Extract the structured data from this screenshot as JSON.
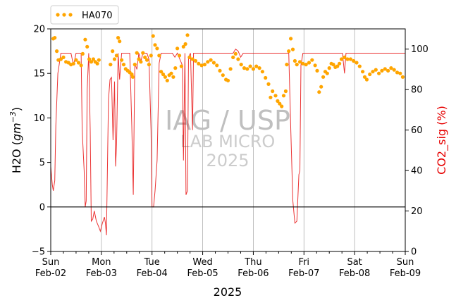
{
  "chart_data": {
    "type": "line",
    "x_axis": {
      "label": "2025",
      "ticks": [
        {
          "day": "Sun",
          "date": "Feb-02",
          "x": 0
        },
        {
          "day": "Mon",
          "date": "Feb-03",
          "x": 1
        },
        {
          "day": "Tue",
          "date": "Feb-04",
          "x": 2
        },
        {
          "day": "Wed",
          "date": "Feb-05",
          "x": 3
        },
        {
          "day": "Thu",
          "date": "Feb-06",
          "x": 4
        },
        {
          "day": "Fri",
          "date": "Feb-07",
          "x": 5
        },
        {
          "day": "Sat",
          "date": "Feb-08",
          "x": 6
        },
        {
          "day": "Sun",
          "date": "Feb-09",
          "x": 7
        }
      ],
      "range_days": [
        0,
        7
      ],
      "grid": true
    },
    "y_left": {
      "label_prefix": "H2O (",
      "label_math": "gm",
      "label_sup": "−3",
      "label_suffix": ")",
      "ylim": [
        -5,
        20
      ],
      "ticks": [
        "−5",
        "0",
        "5",
        "10",
        "15",
        "20"
      ],
      "tick_values": [
        -5,
        0,
        5,
        10,
        15,
        20
      ],
      "zero_line": true
    },
    "y_right": {
      "label": "CO2_sig (%)",
      "color": "#e60000",
      "ylim": [
        0,
        110
      ],
      "ticks": [
        "0",
        "20",
        "40",
        "60",
        "80",
        "100"
      ],
      "tick_values": [
        0,
        20,
        40,
        60,
        80,
        100
      ]
    },
    "series": [
      {
        "name": "HA070",
        "axis": "left",
        "style": "dots",
        "color": "#ffa500",
        "points": [
          [
            0.05,
            18.9
          ],
          [
            0.08,
            19.0
          ],
          [
            0.12,
            17.5
          ],
          [
            0.15,
            16.5
          ],
          [
            0.2,
            16.6
          ],
          [
            0.25,
            16.8
          ],
          [
            0.3,
            16.3
          ],
          [
            0.35,
            16.2
          ],
          [
            0.4,
            16.0
          ],
          [
            0.45,
            16.1
          ],
          [
            0.5,
            16.5
          ],
          [
            0.55,
            16.2
          ],
          [
            0.6,
            15.9
          ],
          [
            0.63,
            17.2
          ],
          [
            0.68,
            18.8
          ],
          [
            0.72,
            18.0
          ],
          [
            0.76,
            16.6
          ],
          [
            0.8,
            16.3
          ],
          [
            0.84,
            16.6
          ],
          [
            0.88,
            16.3
          ],
          [
            0.92,
            16.1
          ],
          [
            0.95,
            16.5
          ],
          [
            1.18,
            16.0
          ],
          [
            1.22,
            17.5
          ],
          [
            1.26,
            16.6
          ],
          [
            1.3,
            17.0
          ],
          [
            1.33,
            19.0
          ],
          [
            1.36,
            18.6
          ],
          [
            1.4,
            16.5
          ],
          [
            1.44,
            16.0
          ],
          [
            1.48,
            15.5
          ],
          [
            1.52,
            15.3
          ],
          [
            1.56,
            15.1
          ],
          [
            1.6,
            14.9
          ],
          [
            1.62,
            14.6
          ],
          [
            1.66,
            16.0
          ],
          [
            1.7,
            17.3
          ],
          [
            1.74,
            16.6
          ],
          [
            1.78,
            16.3
          ],
          [
            1.82,
            17.3
          ],
          [
            1.86,
            16.8
          ],
          [
            1.9,
            16.5
          ],
          [
            1.94,
            16.0
          ],
          [
            1.98,
            17.0
          ],
          [
            2.02,
            19.2
          ],
          [
            2.06,
            18.2
          ],
          [
            2.1,
            17.8
          ],
          [
            2.14,
            17.0
          ],
          [
            2.18,
            15.2
          ],
          [
            2.22,
            14.9
          ],
          [
            2.26,
            14.6
          ],
          [
            2.3,
            14.2
          ],
          [
            2.34,
            14.8
          ],
          [
            2.38,
            15.0
          ],
          [
            2.42,
            14.6
          ],
          [
            2.46,
            15.6
          ],
          [
            2.5,
            17.8
          ],
          [
            2.54,
            17.0
          ],
          [
            2.58,
            15.8
          ],
          [
            2.62,
            18.0
          ],
          [
            2.66,
            18.3
          ],
          [
            2.7,
            19.3
          ],
          [
            2.74,
            16.8
          ],
          [
            2.8,
            16.6
          ],
          [
            2.86,
            16.4
          ],
          [
            2.92,
            16.1
          ],
          [
            2.98,
            15.9
          ],
          [
            3.04,
            16.0
          ],
          [
            3.1,
            16.3
          ],
          [
            3.16,
            16.5
          ],
          [
            3.22,
            16.2
          ],
          [
            3.28,
            15.9
          ],
          [
            3.34,
            15.3
          ],
          [
            3.4,
            14.8
          ],
          [
            3.46,
            14.3
          ],
          [
            3.5,
            14.2
          ],
          [
            3.55,
            15.5
          ],
          [
            3.6,
            16.8
          ],
          [
            3.65,
            17.2
          ],
          [
            3.7,
            16.6
          ],
          [
            3.76,
            16.0
          ],
          [
            3.82,
            15.6
          ],
          [
            3.88,
            15.5
          ],
          [
            3.94,
            15.8
          ],
          [
            4.0,
            15.5
          ],
          [
            4.06,
            15.8
          ],
          [
            4.12,
            15.6
          ],
          [
            4.18,
            15.2
          ],
          [
            4.24,
            14.5
          ],
          [
            4.3,
            13.8
          ],
          [
            4.34,
            12.3
          ],
          [
            4.38,
            13.0
          ],
          [
            4.44,
            12.5
          ],
          [
            4.48,
            11.9
          ],
          [
            4.52,
            11.6
          ],
          [
            4.56,
            11.3
          ],
          [
            4.6,
            12.5
          ],
          [
            4.64,
            13.0
          ],
          [
            4.66,
            16.0
          ],
          [
            4.7,
            17.5
          ],
          [
            4.74,
            18.9
          ],
          [
            4.78,
            17.7
          ],
          [
            4.82,
            16.4
          ],
          [
            4.86,
            16.0
          ],
          [
            4.92,
            16.3
          ],
          [
            4.98,
            16.1
          ],
          [
            5.04,
            16.0
          ],
          [
            5.1,
            16.2
          ],
          [
            5.16,
            16.5
          ],
          [
            5.22,
            15.9
          ],
          [
            5.26,
            15.3
          ],
          [
            5.3,
            12.9
          ],
          [
            5.34,
            13.5
          ],
          [
            5.38,
            14.6
          ],
          [
            5.42,
            15.2
          ],
          [
            5.46,
            15.0
          ],
          [
            5.5,
            15.6
          ],
          [
            5.54,
            16.1
          ],
          [
            5.58,
            16.0
          ],
          [
            5.62,
            15.7
          ],
          [
            5.66,
            15.8
          ],
          [
            5.7,
            16.1
          ],
          [
            5.74,
            16.6
          ],
          [
            5.8,
            16.8
          ],
          [
            5.86,
            16.6
          ],
          [
            5.92,
            16.6
          ],
          [
            5.98,
            16.4
          ],
          [
            6.04,
            16.2
          ],
          [
            6.1,
            15.8
          ],
          [
            6.16,
            15.2
          ],
          [
            6.2,
            14.6
          ],
          [
            6.24,
            14.3
          ],
          [
            6.3,
            14.9
          ],
          [
            6.36,
            15.2
          ],
          [
            6.42,
            15.4
          ],
          [
            6.48,
            15.0
          ],
          [
            6.54,
            15.3
          ],
          [
            6.6,
            15.5
          ],
          [
            6.66,
            15.3
          ],
          [
            6.72,
            15.6
          ],
          [
            6.78,
            15.4
          ],
          [
            6.84,
            15.1
          ],
          [
            6.9,
            15.0
          ],
          [
            6.95,
            14.6
          ]
        ]
      },
      {
        "name": "CO2_sig",
        "axis": "right",
        "style": "line",
        "color": "#e60000",
        "points": [
          [
            0.0,
            42
          ],
          [
            0.03,
            33
          ],
          [
            0.05,
            30
          ],
          [
            0.08,
            35
          ],
          [
            0.1,
            62
          ],
          [
            0.14,
            88
          ],
          [
            0.2,
            98
          ],
          [
            0.3,
            98
          ],
          [
            0.4,
            98
          ],
          [
            0.45,
            92
          ],
          [
            0.5,
            98
          ],
          [
            0.55,
            98
          ],
          [
            0.6,
            98
          ],
          [
            0.62,
            60
          ],
          [
            0.66,
            40
          ],
          [
            0.68,
            22
          ],
          [
            0.7,
            25
          ],
          [
            0.72,
            80
          ],
          [
            0.75,
            98
          ],
          [
            0.78,
            60
          ],
          [
            0.8,
            15
          ],
          [
            0.83,
            16
          ],
          [
            0.86,
            20
          ],
          [
            0.9,
            15
          ],
          [
            0.95,
            12
          ],
          [
            0.98,
            10
          ],
          [
            1.02,
            14
          ],
          [
            1.06,
            17
          ],
          [
            1.08,
            14
          ],
          [
            1.1,
            8
          ],
          [
            1.14,
            75
          ],
          [
            1.17,
            85
          ],
          [
            1.2,
            86
          ],
          [
            1.23,
            55
          ],
          [
            1.26,
            84
          ],
          [
            1.28,
            42
          ],
          [
            1.3,
            53
          ],
          [
            1.33,
            98
          ],
          [
            1.36,
            85
          ],
          [
            1.4,
            98
          ],
          [
            1.45,
            98
          ],
          [
            1.5,
            98
          ],
          [
            1.56,
            98
          ],
          [
            1.6,
            62
          ],
          [
            1.63,
            28
          ],
          [
            1.66,
            93
          ],
          [
            1.7,
            90
          ],
          [
            1.74,
            98
          ],
          [
            1.78,
            94
          ],
          [
            1.82,
            98
          ],
          [
            1.86,
            98
          ],
          [
            1.9,
            98
          ],
          [
            1.94,
            95
          ],
          [
            1.98,
            60
          ],
          [
            2.0,
            22
          ],
          [
            2.03,
            22
          ],
          [
            2.06,
            30
          ],
          [
            2.1,
            45
          ],
          [
            2.14,
            93
          ],
          [
            2.18,
            98
          ],
          [
            2.3,
            98
          ],
          [
            2.4,
            98
          ],
          [
            2.45,
            96
          ],
          [
            2.5,
            98
          ],
          [
            2.6,
            92
          ],
          [
            2.62,
            45
          ],
          [
            2.65,
            98
          ],
          [
            2.67,
            28
          ],
          [
            2.7,
            30
          ],
          [
            2.72,
            96
          ],
          [
            2.76,
            98
          ],
          [
            2.8,
            60
          ],
          [
            2.82,
            98
          ],
          [
            3.0,
            98
          ],
          [
            3.2,
            98
          ],
          [
            3.4,
            98
          ],
          [
            3.5,
            98
          ],
          [
            3.6,
            98
          ],
          [
            3.65,
            100
          ],
          [
            3.7,
            99
          ],
          [
            3.75,
            96
          ],
          [
            3.8,
            98
          ],
          [
            4.0,
            98
          ],
          [
            4.2,
            98
          ],
          [
            4.4,
            98
          ],
          [
            4.6,
            98
          ],
          [
            4.7,
            98
          ],
          [
            4.74,
            60
          ],
          [
            4.78,
            25
          ],
          [
            4.82,
            14
          ],
          [
            4.86,
            15
          ],
          [
            4.9,
            38
          ],
          [
            4.92,
            40
          ],
          [
            4.94,
            92
          ],
          [
            4.98,
            98
          ],
          [
            5.2,
            98
          ],
          [
            5.4,
            98
          ],
          [
            5.6,
            98
          ],
          [
            5.76,
            98
          ],
          [
            5.8,
            88
          ],
          [
            5.83,
            98
          ],
          [
            6.0,
            98
          ],
          [
            6.2,
            98
          ],
          [
            6.4,
            98
          ],
          [
            6.6,
            98
          ],
          [
            6.8,
            98
          ],
          [
            7.0,
            98
          ]
        ]
      }
    ],
    "legend": {
      "entries": [
        "HA070"
      ],
      "placement": "above-top-left"
    },
    "watermark": [
      "IAG / USP",
      "LAB MICRO",
      "2025"
    ]
  }
}
